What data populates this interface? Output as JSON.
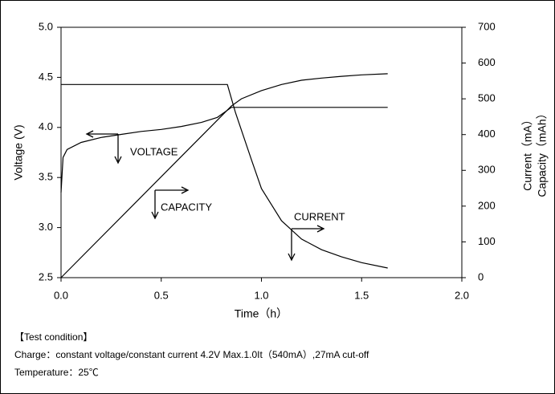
{
  "chart_data": {
    "type": "line",
    "xlabel": "Time（h）",
    "ylabel": "Voltage (V)",
    "y2labels": [
      "Current（mA）",
      "Capacity（mAh）"
    ],
    "xlim": [
      0,
      2
    ],
    "xticks": [
      {
        "value": 0,
        "label": "0.0"
      },
      0.5,
      {
        "value": 1,
        "label": "1.0"
      },
      1.5,
      {
        "value": 2,
        "label": "2.0"
      }
    ],
    "ylim": [
      2.5,
      5
    ],
    "yticks": [
      2.5,
      {
        "value": 3,
        "label": "3.0"
      },
      3.5,
      {
        "value": 4,
        "label": "4.0"
      },
      4.5,
      {
        "value": 5,
        "label": "5.0"
      }
    ],
    "y2lim": [
      0,
      700
    ],
    "y2ticks": [
      0,
      100,
      200,
      300,
      400,
      500,
      600,
      700
    ],
    "grid": false,
    "series": [
      {
        "name": "VOLTAGE",
        "color": "#000000",
        "axis": "y",
        "x": [
          0,
          0.01,
          0.03,
          0.1,
          0.2,
          0.3,
          0.4,
          0.5,
          0.6,
          0.7,
          0.78,
          0.85,
          1.0,
          1.2,
          1.4,
          1.63
        ],
        "values": [
          3.35,
          3.7,
          3.78,
          3.85,
          3.9,
          3.93,
          3.96,
          3.98,
          4.01,
          4.05,
          4.1,
          4.2,
          4.2,
          4.2,
          4.2,
          4.2
        ]
      },
      {
        "name": "CURRENT",
        "color": "#000000",
        "axis": "y2",
        "x": [
          0,
          0.83,
          0.87,
          0.95,
          1.0,
          1.1,
          1.2,
          1.3,
          1.4,
          1.5,
          1.63
        ],
        "values": [
          540,
          540,
          462,
          330,
          249,
          159,
          108,
          78,
          58,
          42,
          27
        ]
      },
      {
        "name": "CAPACITY",
        "color": "#000000",
        "axis": "y2",
        "x": [
          0,
          0.85,
          0.9,
          1.0,
          1.1,
          1.2,
          1.3,
          1.4,
          1.5,
          1.63
        ],
        "values": [
          0,
          480,
          500,
          523,
          540,
          552,
          558,
          563,
          567,
          570
        ]
      }
    ],
    "notes": [
      "【Test condition】",
      "Charge：constant voltage/constant current 4.2V Max.1.0It（540mA）,27mA cut-off",
      "Temperature：25℃"
    ]
  }
}
